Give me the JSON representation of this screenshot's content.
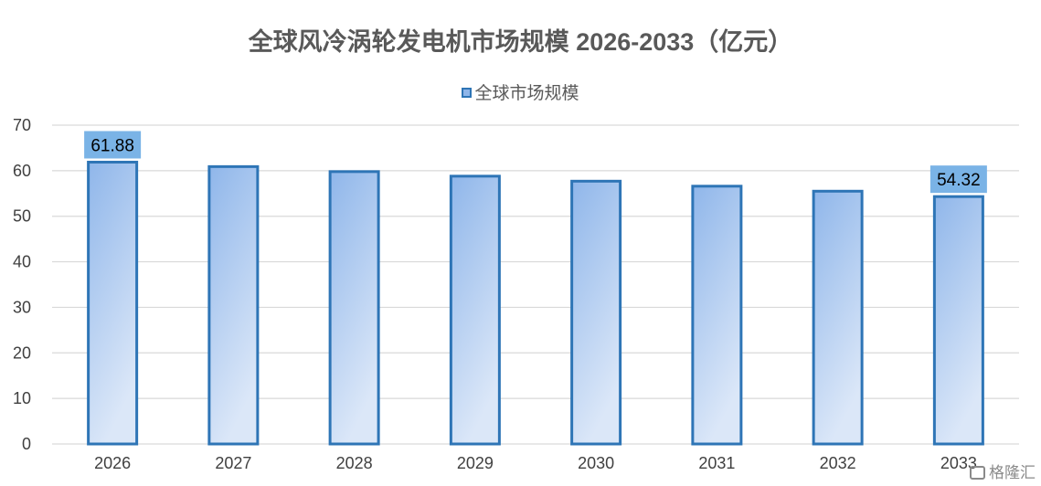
{
  "chart_data": {
    "type": "bar",
    "title": "全球风冷涡轮发电机市场规模 2026-2033（亿元）",
    "categories": [
      "2026",
      "2027",
      "2028",
      "2029",
      "2030",
      "2031",
      "2032",
      "2033"
    ],
    "series": [
      {
        "name": "全球市场规模",
        "values": [
          61.88,
          60.9,
          59.8,
          58.8,
          57.7,
          56.6,
          55.5,
          54.32
        ]
      }
    ],
    "data_labels": [
      {
        "category": "2026",
        "value": "61.88"
      },
      {
        "category": "2033",
        "value": "54.32"
      }
    ],
    "ylim": [
      0,
      70
    ],
    "yticks": [
      "0",
      "10",
      "20",
      "30",
      "40",
      "50",
      "60",
      "70"
    ],
    "grid": true,
    "legend_position": "top",
    "bar_fill_top": "#8fb6ea",
    "bar_fill_bottom": "#dbe7f8",
    "bar_edge": "#2e75b6",
    "label_bg": "#7ab3e6",
    "grid_color": "#d9d9d9"
  },
  "watermark": {
    "text": "格隆汇",
    "icon": "logo-icon"
  }
}
